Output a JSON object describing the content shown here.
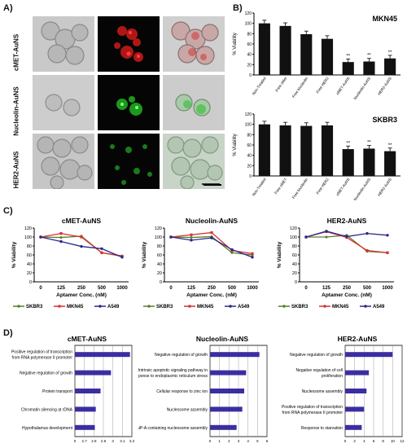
{
  "panels": {
    "A": "A)",
    "B": "B)",
    "C": "C)",
    "D": "D)"
  },
  "panel_a": {
    "rows": [
      "cMET-AuNS",
      "Nucleolin-AuNS",
      "HER2-AuNS"
    ],
    "channels": [
      "bright-field",
      "fluorescence",
      "merge"
    ],
    "colors": {
      "cmet": "#e02020",
      "nucleolin": "#30c030",
      "her2": "#30c030"
    }
  },
  "chart_data": [
    {
      "type": "bar",
      "id": "B-top",
      "title": "MKN45",
      "ylabel": "% Viability",
      "ylim": [
        0,
        120
      ],
      "yticks": [
        "0",
        "20",
        "40",
        "60",
        "80",
        "100",
        "120"
      ],
      "categories": [
        "Non-Treated",
        "Free cMet",
        "Free Nucleolin",
        "Free HER2",
        "cMET-AuNS",
        "Nucleolin-AuNS",
        "HER2-AuNS"
      ],
      "values": [
        100,
        95,
        79,
        70,
        25,
        26,
        32
      ],
      "annotations": [
        "",
        "",
        "",
        "",
        "**",
        "**",
        "**"
      ]
    },
    {
      "type": "bar",
      "id": "B-bottom",
      "title": "SKBR3",
      "ylabel": "% Viability",
      "ylim": [
        0,
        120
      ],
      "yticks": [
        "0",
        "20",
        "40",
        "60",
        "80",
        "100",
        "120"
      ],
      "categories": [
        "Non-Treated",
        "Free cMET",
        "Free Nucleolin",
        "Free HER2",
        "cMET-AuNS",
        "Nucleolin-AuNS",
        "HER2-AuNS"
      ],
      "values": [
        100,
        98,
        97,
        98,
        52,
        53,
        48
      ],
      "annotations": [
        "",
        "",
        "",
        "",
        "**",
        "**",
        "**"
      ]
    },
    {
      "type": "line",
      "id": "C-1",
      "title": "cMET-AuNS",
      "xlabel": "Aptamer Conc. (nM)",
      "ylabel": "% Viability",
      "ylim": [
        0,
        120
      ],
      "yticks": [
        "0",
        "20",
        "40",
        "60",
        "80",
        "100",
        "120"
      ],
      "x": [
        "0",
        "125",
        "250",
        "500",
        "1000"
      ],
      "series": [
        {
          "name": "SKBR3",
          "values": [
            100,
            99,
            102,
            65,
            58
          ]
        },
        {
          "name": "MKN45",
          "values": [
            100,
            108,
            100,
            65,
            57
          ]
        },
        {
          "name": "A549",
          "values": [
            100,
            90,
            79,
            74,
            55
          ]
        }
      ]
    },
    {
      "type": "line",
      "id": "C-2",
      "title": "Nucleolin-AuNS",
      "xlabel": "Aptamer Conc. (nM)",
      "ylabel": "% Viability",
      "ylim": [
        0,
        120
      ],
      "yticks": [
        "0",
        "20",
        "40",
        "60",
        "80",
        "100",
        "120"
      ],
      "x": [
        "0",
        "125",
        "250",
        "500",
        "1000"
      ],
      "series": [
        {
          "name": "SKBR3",
          "values": [
            100,
            99,
            101,
            65,
            60
          ]
        },
        {
          "name": "MKN45",
          "values": [
            100,
            105,
            110,
            70,
            63
          ]
        },
        {
          "name": "A549",
          "values": [
            100,
            93,
            98,
            72,
            55
          ]
        }
      ]
    },
    {
      "type": "line",
      "id": "C-3",
      "title": "HER2-AuNS",
      "xlabel": "Aptamer Conc. (nM)",
      "ylabel": "% Viability",
      "ylim": [
        0,
        120
      ],
      "yticks": [
        "0",
        "20",
        "40",
        "60",
        "80",
        "100",
        "120"
      ],
      "x": [
        "0",
        "125",
        "250",
        "500",
        "1000"
      ],
      "series": [
        {
          "name": "SKBR3",
          "values": [
            100,
            100,
            104,
            68,
            65
          ]
        },
        {
          "name": "MKN45",
          "values": [
            100,
            112,
            99,
            70,
            65
          ]
        },
        {
          "name": "A549",
          "values": [
            100,
            113,
            101,
            108,
            104
          ]
        }
      ]
    },
    {
      "type": "bar",
      "id": "D-1",
      "orientation": "horizontal",
      "title": "cMET-AuNS",
      "categories": [
        "Positive regulation of transcription from RNA polymerase II promoter",
        "Negative regulation of growth",
        "Protein transport",
        "Chromatin silencing at rDNA",
        "Hypothalamus development"
      ],
      "values": [
        3.18,
        2.98,
        2.87,
        2.82,
        2.81
      ],
      "xlim": [
        2.6,
        3.2
      ],
      "xticks": [
        "0",
        "2.7",
        "2.8",
        "2.9",
        "3",
        "3.1",
        "3.2"
      ]
    },
    {
      "type": "bar",
      "id": "D-2",
      "orientation": "horizontal",
      "title": "Nucleolin-AuNS",
      "categories": [
        "Negative regulation of growth",
        "Intrinsic apoptotic signaling pathway in response to endoplasmic reticulum stress",
        "Cellular response to zinc ion",
        "Nucleosome assembly",
        "CENP-A containing nucleosome assembly"
      ],
      "values": [
        5.2,
        3.8,
        3.6,
        3.4,
        2.8
      ],
      "xlim": [
        0,
        6
      ],
      "xticks": [
        "0",
        "1",
        "2",
        "3",
        "4",
        "5",
        "6"
      ]
    },
    {
      "type": "bar",
      "id": "D-3",
      "orientation": "horizontal",
      "title": "HER2-AuNS",
      "categories": [
        "Negative regulation of growth",
        "Negative regulation of cell proliferation",
        "Nucleosome assembly",
        "Positive regulation of transcription from RNA polymerase II promoter",
        "Response to starvation"
      ],
      "values": [
        10,
        5,
        4.5,
        4,
        3.5
      ],
      "xlim": [
        0,
        12
      ],
      "xticks": [
        "0",
        "2",
        "4",
        "6",
        "8",
        "10",
        "12"
      ]
    }
  ],
  "colors": {
    "skbr3": "#5a7d2a",
    "mkn45": "#d83030",
    "a549": "#2a2a8a",
    "purple_bar": "#3b2ea0",
    "black_bar": "#111111"
  }
}
